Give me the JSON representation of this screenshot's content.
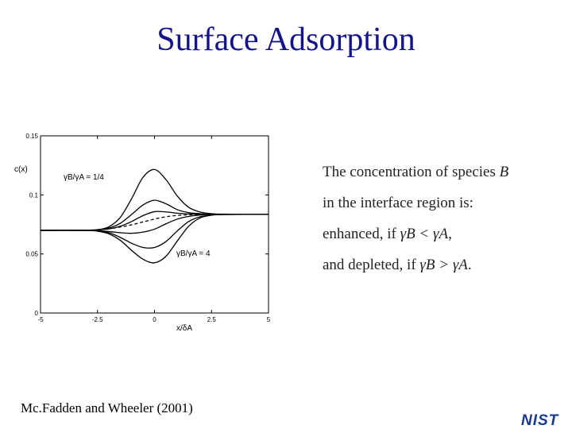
{
  "title": "Surface Adsorption",
  "chart_data": {
    "type": "line",
    "xlabel": "x/δA",
    "ylabel": "c(x)",
    "xlim": [
      -5,
      5
    ],
    "ylim": [
      0,
      0.15
    ],
    "x_ticks": [
      "-5",
      "-2.5",
      "0",
      "2.5",
      "5"
    ],
    "y_ticks": [
      "0",
      "0.05",
      "0.1",
      "0.15"
    ],
    "annotations": [
      "γB/γA = 1/4",
      "γB/γA = 4"
    ],
    "series": [
      {
        "dashed": false,
        "values": [
          [
            -5,
            0.07
          ],
          [
            -3,
            0.0701
          ],
          [
            -2.5,
            0.0705
          ],
          [
            -2,
            0.073
          ],
          [
            -1.5,
            0.081
          ],
          [
            -1,
            0.097
          ],
          [
            -0.5,
            0.115
          ],
          [
            0,
            0.1215
          ],
          [
            0.5,
            0.113
          ],
          [
            1,
            0.099
          ],
          [
            1.5,
            0.0895
          ],
          [
            2,
            0.0855
          ],
          [
            2.5,
            0.0841
          ],
          [
            3,
            0.0837
          ],
          [
            5,
            0.0835
          ]
        ]
      },
      {
        "dashed": false,
        "values": [
          [
            -5,
            0.07
          ],
          [
            -3,
            0.0701
          ],
          [
            -2.5,
            0.0705
          ],
          [
            -2,
            0.072
          ],
          [
            -1.5,
            0.076
          ],
          [
            -1,
            0.0835
          ],
          [
            -0.5,
            0.0915
          ],
          [
            0,
            0.0955
          ],
          [
            0.5,
            0.0925
          ],
          [
            1,
            0.0875
          ],
          [
            1.5,
            0.085
          ],
          [
            2,
            0.0841
          ],
          [
            2.5,
            0.0837
          ],
          [
            3,
            0.0835
          ],
          [
            5,
            0.0835
          ]
        ]
      },
      {
        "dashed": false,
        "values": [
          [
            -5,
            0.07
          ],
          [
            -3,
            0.0701
          ],
          [
            -2.5,
            0.0704
          ],
          [
            -2,
            0.0712
          ],
          [
            -1.5,
            0.0735
          ],
          [
            -1,
            0.0775
          ],
          [
            -0.5,
            0.0825
          ],
          [
            0,
            0.0858
          ],
          [
            0.5,
            0.0856
          ],
          [
            1,
            0.0845
          ],
          [
            1.5,
            0.0839
          ],
          [
            2,
            0.0836
          ],
          [
            2.5,
            0.0835
          ],
          [
            5,
            0.0835
          ]
        ]
      },
      {
        "dashed": true,
        "values": [
          [
            -5,
            0.07
          ],
          [
            -3,
            0.0702
          ],
          [
            -2.5,
            0.0706
          ],
          [
            -2,
            0.0714
          ],
          [
            -1.5,
            0.0728
          ],
          [
            -1,
            0.0747
          ],
          [
            -0.5,
            0.0771
          ],
          [
            0,
            0.0796
          ],
          [
            0.5,
            0.0815
          ],
          [
            1,
            0.0826
          ],
          [
            1.5,
            0.0832
          ],
          [
            2,
            0.0834
          ],
          [
            2.5,
            0.0835
          ],
          [
            5,
            0.0835
          ]
        ]
      },
      {
        "dashed": false,
        "values": [
          [
            -5,
            0.07
          ],
          [
            -3,
            0.0699
          ],
          [
            -2.5,
            0.0697
          ],
          [
            -2,
            0.069
          ],
          [
            -1.5,
            0.068
          ],
          [
            -1,
            0.0675
          ],
          [
            -0.5,
            0.0685
          ],
          [
            0,
            0.071
          ],
          [
            0.5,
            0.0755
          ],
          [
            1,
            0.0795
          ],
          [
            1.5,
            0.0818
          ],
          [
            2,
            0.0829
          ],
          [
            2.5,
            0.0834
          ],
          [
            5,
            0.0835
          ]
        ]
      },
      {
        "dashed": false,
        "values": [
          [
            -5,
            0.07
          ],
          [
            -3,
            0.0699
          ],
          [
            -2.5,
            0.0695
          ],
          [
            -2,
            0.068
          ],
          [
            -1.5,
            0.064
          ],
          [
            -1,
            0.059
          ],
          [
            -0.5,
            0.0555
          ],
          [
            0,
            0.0555
          ],
          [
            0.5,
            0.0605
          ],
          [
            1,
            0.0695
          ],
          [
            1.5,
            0.0775
          ],
          [
            2,
            0.0815
          ],
          [
            2.5,
            0.0829
          ],
          [
            3,
            0.0834
          ],
          [
            5,
            0.0835
          ]
        ]
      },
      {
        "dashed": false,
        "values": [
          [
            -5,
            0.07
          ],
          [
            -3,
            0.0699
          ],
          [
            -2.5,
            0.0693
          ],
          [
            -2,
            0.067
          ],
          [
            -1.5,
            0.0615
          ],
          [
            -1,
            0.053
          ],
          [
            -0.5,
            0.0455
          ],
          [
            0,
            0.0425
          ],
          [
            0.5,
            0.048
          ],
          [
            1,
            0.061
          ],
          [
            1.5,
            0.0735
          ],
          [
            2,
            0.0805
          ],
          [
            2.5,
            0.0828
          ],
          [
            3,
            0.0834
          ],
          [
            5,
            0.0835
          ]
        ]
      }
    ]
  },
  "description": {
    "line1": {
      "text": "The concentration of species ",
      "var": "B"
    },
    "line2": {
      "text": "in the interface region is:"
    },
    "line3": {
      "text": "enhanced, if ",
      "math": "γB < γA",
      "end": ","
    },
    "line4": {
      "text": "and depleted, if ",
      "math": "γB > γA",
      "end": "."
    }
  },
  "citation": "Mc.Fadden and Wheeler (2001)",
  "logo": {
    "text": "NIST",
    "color": "#1a3a8c"
  }
}
